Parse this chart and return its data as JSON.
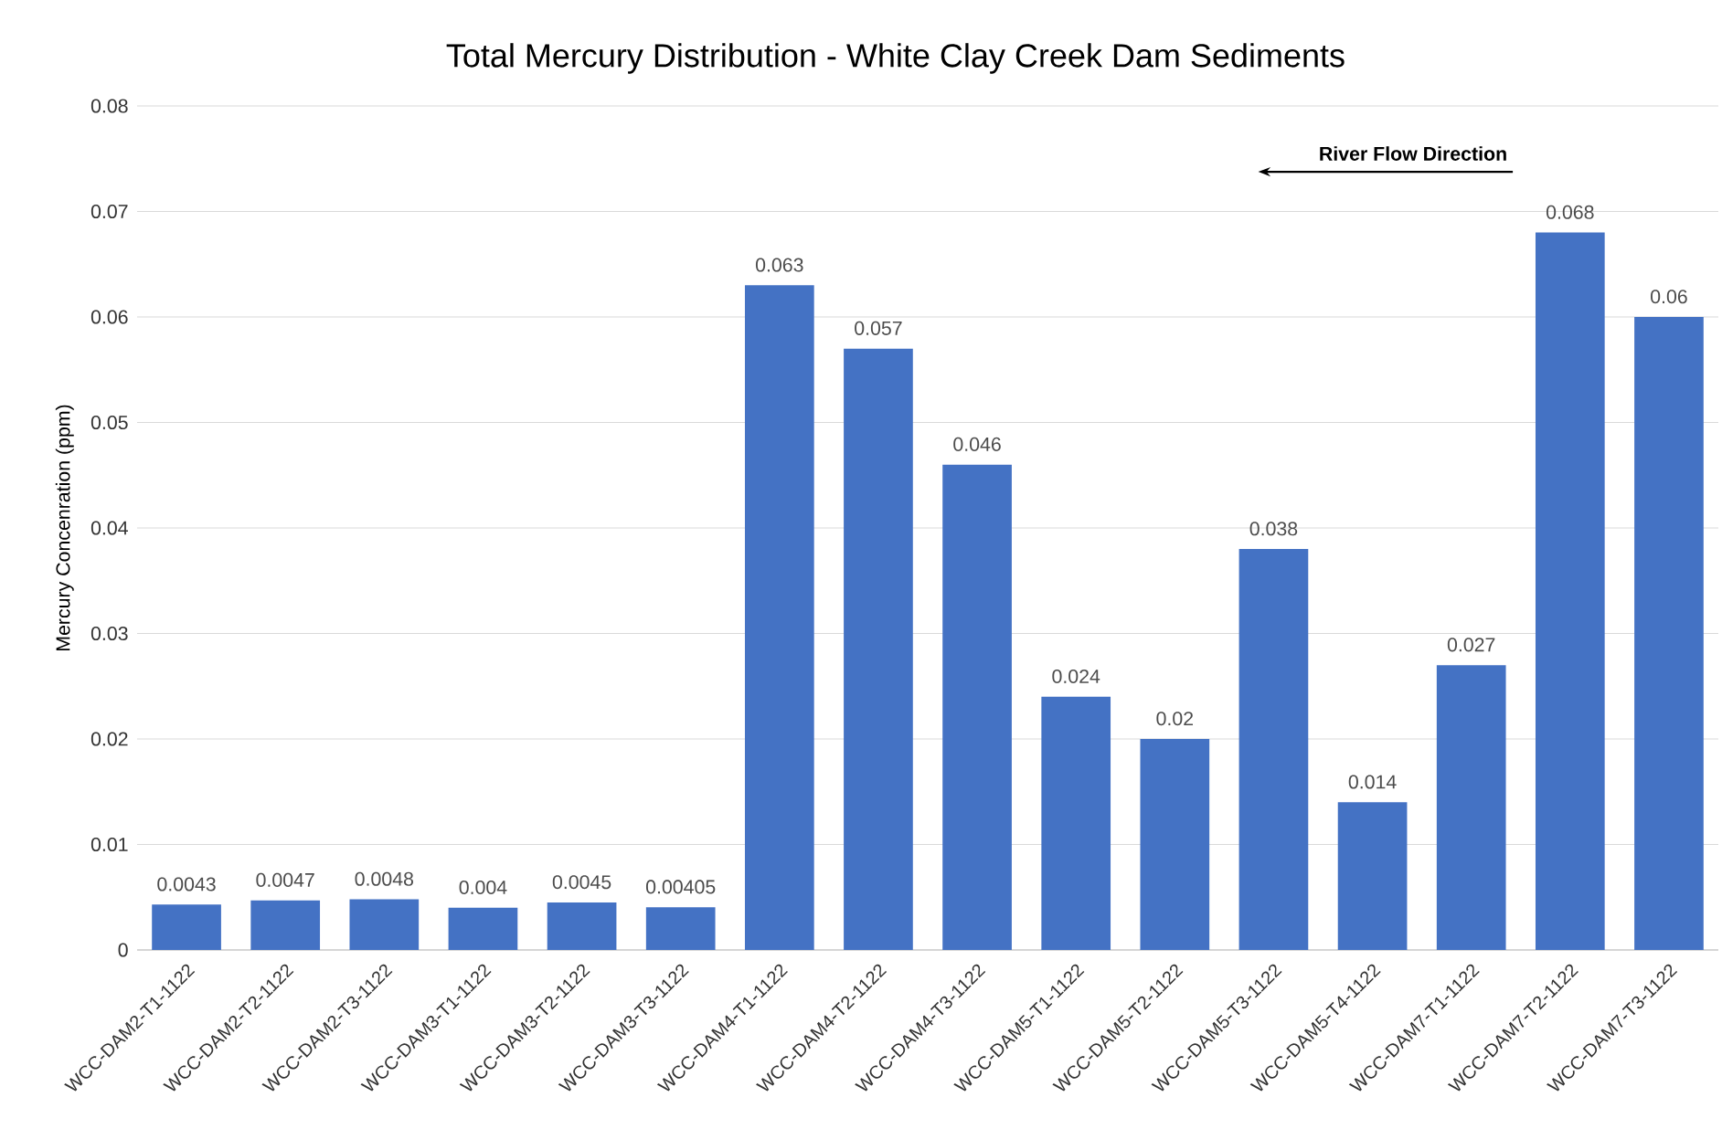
{
  "chart_data": {
    "type": "bar",
    "title": "Total Mercury Distribution - White Clay Creek Dam Sediments",
    "ylabel": "Mercury Concenration (ppm)",
    "annotations": [
      "River Flow Direction"
    ],
    "categories": [
      "WCC-DAM2-T1-1122",
      "WCC-DAM2-T2-1122",
      "WCC-DAM2-T3-1122",
      "WCC-DAM3-T1-1122",
      "WCC-DAM3-T2-1122",
      "WCC-DAM3-T3-1122",
      "WCC-DAM4-T1-1122",
      "WCC-DAM4-T2-1122",
      "WCC-DAM4-T3-1122",
      "WCC-DAM5-T1-1122",
      "WCC-DAM5-T2-1122",
      "WCC-DAM5-T3-1122",
      "WCC-DAM5-T4-1122",
      "WCC-DAM7-T1-1122",
      "WCC-DAM7-T2-1122",
      "WCC-DAM7-T3-1122"
    ],
    "values": [
      0.0043,
      0.0047,
      0.0048,
      0.004,
      0.0045,
      0.00405,
      0.063,
      0.057,
      0.046,
      0.024,
      0.02,
      0.038,
      0.014,
      0.027,
      0.068,
      0.06
    ],
    "color": "#4472c4",
    "ylim": [
      0,
      0.08
    ],
    "yticks": [
      0,
      0.01,
      0.02,
      0.03,
      0.04,
      0.05,
      0.06,
      0.07,
      0.08
    ],
    "grid": "y",
    "data_labels": true
  }
}
